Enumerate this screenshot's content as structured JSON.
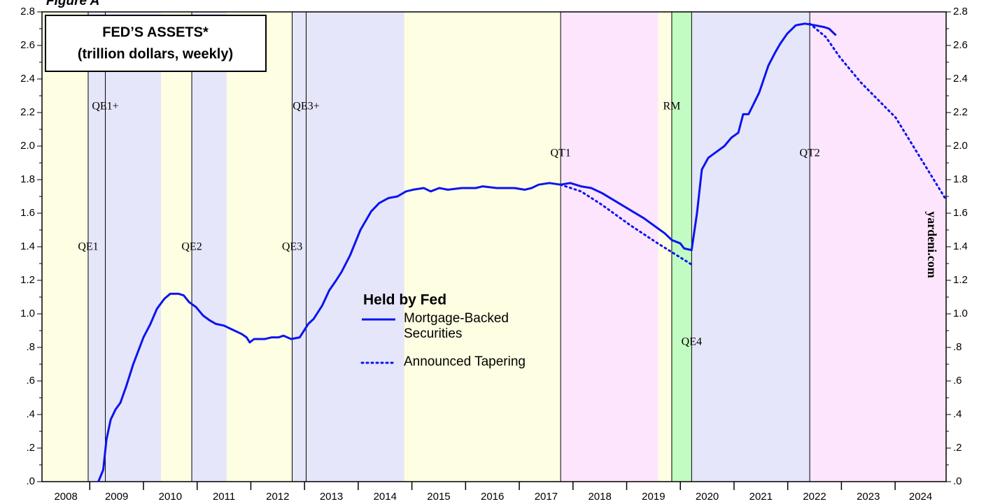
{
  "chart_data": {
    "type": "line",
    "figure_label": "Figure A",
    "title": "FED’S ASSETS*",
    "subtitle": "(trillion dollars, weekly)",
    "legend_title": "Held by Fed",
    "watermark": "yardeni.com",
    "xlim": [
      2008.11,
      2024.95
    ],
    "ylim": [
      0,
      2.8
    ],
    "xticks": [
      {
        "value": 2008,
        "label": "2008"
      },
      {
        "value": 2009,
        "label": "2009"
      },
      {
        "value": 2010,
        "label": "2010"
      },
      {
        "value": 2011,
        "label": "2011"
      },
      {
        "value": 2012,
        "label": "2012"
      },
      {
        "value": 2013,
        "label": "2013"
      },
      {
        "value": 2014,
        "label": "2014"
      },
      {
        "value": 2015,
        "label": "2015"
      },
      {
        "value": 2016,
        "label": "2016"
      },
      {
        "value": 2017,
        "label": "2017"
      },
      {
        "value": 2018,
        "label": "2018"
      },
      {
        "value": 2019,
        "label": "2019"
      },
      {
        "value": 2020,
        "label": "2020"
      },
      {
        "value": 2021,
        "label": "2021"
      },
      {
        "value": 2022,
        "label": "2022"
      },
      {
        "value": 2023,
        "label": "2023"
      },
      {
        "value": 2024,
        "label": "2024"
      }
    ],
    "yticks": [
      {
        "value": 0,
        "label": ".0"
      },
      {
        "value": 0.2,
        "label": ".2"
      },
      {
        "value": 0.4,
        "label": ".4"
      },
      {
        "value": 0.6,
        "label": ".6"
      },
      {
        "value": 0.8,
        "label": ".8"
      },
      {
        "value": 1,
        "label": "1.0"
      },
      1.2,
      1.4,
      1.6,
      1.8,
      {
        "value": 2,
        "label": "2.0"
      },
      2.2,
      2.4,
      2.6,
      2.8
    ],
    "regions": [
      {
        "start": 2008.11,
        "end": 2008.97,
        "color": "#fefee2"
      },
      {
        "start": 2008.97,
        "end": 2010.33,
        "color": "#e6e6fb"
      },
      {
        "start": 2010.33,
        "end": 2010.9,
        "color": "#fefee2"
      },
      {
        "start": 2010.9,
        "end": 2011.55,
        "color": "#e6e6fb"
      },
      {
        "start": 2011.55,
        "end": 2012.77,
        "color": "#fefee2"
      },
      {
        "start": 2012.77,
        "end": 2014.86,
        "color": "#e6e6fb"
      },
      {
        "start": 2014.86,
        "end": 2017.77,
        "color": "#fefee2"
      },
      {
        "start": 2017.77,
        "end": 2019.59,
        "color": "#fde6fd"
      },
      {
        "start": 2019.59,
        "end": 2019.84,
        "color": "#fefee2"
      },
      {
        "start": 2019.84,
        "end": 2020.21,
        "color": "#c2fcc2"
      },
      {
        "start": 2020.21,
        "end": 2022.41,
        "color": "#e6e6fb"
      },
      {
        "start": 2022.41,
        "end": 2024.95,
        "color": "#fde6fd"
      }
    ],
    "events": [
      {
        "x": 2008.97,
        "label": "QE1"
      },
      {
        "x": 2009.29,
        "label": "QE1+"
      },
      {
        "x": 2010.9,
        "label": "QE2"
      },
      {
        "x": 2012.77,
        "label": "QE3"
      },
      {
        "x": 2013.03,
        "label": "QE3+"
      },
      {
        "x": 2017.77,
        "label": "QT1"
      },
      {
        "x": 2019.84,
        "label": "RM"
      },
      {
        "x": 2020.21,
        "label": "QE4"
      },
      {
        "x": 2022.41,
        "label": "QT2"
      }
    ],
    "series": [
      {
        "name": "Mortgage-Backed Securities",
        "color": "#0a14f0",
        "style": "solid",
        "x": [
          2009.16,
          2009.25,
          2009.31,
          2009.39,
          2009.48,
          2009.57,
          2009.68,
          2009.81,
          2010.0,
          2010.13,
          2010.25,
          2010.39,
          2010.5,
          2010.65,
          2010.75,
          2010.85,
          2010.98,
          2011.11,
          2011.24,
          2011.35,
          2011.5,
          2011.63,
          2011.83,
          2011.92,
          2011.98,
          2012.06,
          2012.26,
          2012.39,
          2012.52,
          2012.61,
          2012.75,
          2012.91,
          2013.07,
          2013.17,
          2013.33,
          2013.46,
          2013.59,
          2013.69,
          2013.85,
          2014.04,
          2014.24,
          2014.39,
          2014.56,
          2014.73,
          2014.89,
          2015.02,
          2015.22,
          2015.35,
          2015.51,
          2015.67,
          2015.93,
          2016.19,
          2016.32,
          2016.58,
          2016.91,
          2017.1,
          2017.23,
          2017.36,
          2017.56,
          2017.77,
          2017.95,
          2018.15,
          2018.34,
          2018.54,
          2018.8,
          2019.06,
          2019.32,
          2019.58,
          2019.71,
          2019.84,
          2020.0,
          2020.07,
          2020.21,
          2020.31,
          2020.4,
          2020.52,
          2020.69,
          2020.82,
          2020.95,
          2021.08,
          2021.17,
          2021.27,
          2021.47,
          2021.64,
          2021.77,
          2021.86,
          2021.99,
          2022.15,
          2022.32,
          2022.51,
          2022.67,
          2022.77,
          2022.9
        ],
        "values": [
          0.0,
          0.07,
          0.25,
          0.37,
          0.43,
          0.47,
          0.57,
          0.7,
          0.86,
          0.94,
          1.03,
          1.09,
          1.12,
          1.12,
          1.11,
          1.07,
          1.04,
          0.99,
          0.96,
          0.94,
          0.93,
          0.91,
          0.88,
          0.86,
          0.83,
          0.85,
          0.85,
          0.86,
          0.86,
          0.87,
          0.85,
          0.86,
          0.94,
          0.97,
          1.05,
          1.14,
          1.2,
          1.25,
          1.35,
          1.5,
          1.61,
          1.66,
          1.69,
          1.7,
          1.73,
          1.74,
          1.75,
          1.73,
          1.75,
          1.74,
          1.75,
          1.75,
          1.76,
          1.75,
          1.75,
          1.74,
          1.75,
          1.77,
          1.78,
          1.77,
          1.78,
          1.76,
          1.75,
          1.72,
          1.67,
          1.62,
          1.57,
          1.51,
          1.48,
          1.44,
          1.42,
          1.39,
          1.38,
          1.6,
          1.86,
          1.93,
          1.97,
          2.0,
          2.05,
          2.08,
          2.19,
          2.19,
          2.32,
          2.48,
          2.56,
          2.61,
          2.67,
          2.72,
          2.73,
          2.72,
          2.71,
          2.7,
          2.66
        ]
      },
      {
        "name": "Announced Tapering",
        "color": "#0a14f0",
        "style": "dotted",
        "x": [
          2017.77,
          2018.15,
          2018.54,
          2019.06,
          2019.58,
          2020.23,
          null,
          2022.41,
          2022.71,
          2022.97,
          2023.36,
          2024.01,
          2024.95
        ],
        "values": [
          1.77,
          1.73,
          1.65,
          1.53,
          1.42,
          1.29,
          null,
          2.73,
          2.65,
          2.53,
          2.38,
          2.17,
          1.68
        ]
      }
    ]
  }
}
